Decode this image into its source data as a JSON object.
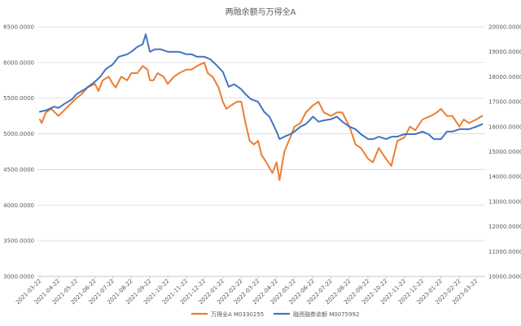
{
  "chart_data": {
    "type": "line",
    "title": "两融余额与万得全A",
    "colors": {
      "s1": "#ED7D31",
      "s2": "#4472C4",
      "grid": "#D9D9D9",
      "text": "#595959"
    },
    "x_categories": [
      "2021-03-22",
      "2021-04-22",
      "2021-05-22",
      "2021-06-22",
      "2021-07-22",
      "2021-08-22",
      "2021-09-22",
      "2021-10-22",
      "2021-11-22",
      "2021-12-22",
      "2022-01-22",
      "2022-02-22",
      "2022-03-22",
      "2022-04-22",
      "2022-05-22",
      "2022-06-22",
      "2022-07-22",
      "2022-08-22",
      "2022-09-22",
      "2022-10-22",
      "2022-11-22",
      "2022-12-22",
      "2023-01-22",
      "2023-02-22",
      "2023-03-22"
    ],
    "y_left": {
      "min": 3000,
      "max": 6500,
      "ticks": [
        "3000.0000",
        "3500.0000",
        "4000.0000",
        "4500.0000",
        "5000.0000",
        "5500.0000",
        "6000.0000",
        "6500.0000"
      ]
    },
    "y_right": {
      "min": 10000,
      "max": 20000,
      "ticks": [
        "10000.0000",
        "11000.0000",
        "12000.0000",
        "13000.0000",
        "14000.0000",
        "15000.0000",
        "16000.0000",
        "17000.0000",
        "18000.0000",
        "19000.0000",
        "20000.0000"
      ]
    },
    "grid": true,
    "legend_position": "bottom",
    "series": [
      {
        "name": "万得全A M0330255",
        "axis": "left",
        "x": [
          "2021-03-22",
          "2021-03-25",
          "2021-04-01",
          "2021-04-10",
          "2021-04-22",
          "2021-04-28",
          "2021-05-10",
          "2021-05-22",
          "2021-05-30",
          "2021-06-10",
          "2021-06-22",
          "2021-06-28",
          "2021-07-05",
          "2021-07-15",
          "2021-07-22",
          "2021-07-27",
          "2021-08-05",
          "2021-08-15",
          "2021-08-22",
          "2021-09-01",
          "2021-09-10",
          "2021-09-18",
          "2021-09-22",
          "2021-09-28",
          "2021-10-05",
          "2021-10-15",
          "2021-10-22",
          "2021-11-01",
          "2021-11-10",
          "2021-11-22",
          "2021-12-01",
          "2021-12-10",
          "2021-12-22",
          "2021-12-28",
          "2022-01-05",
          "2022-01-15",
          "2022-01-22",
          "2022-01-28",
          "2022-02-05",
          "2022-02-15",
          "2022-02-22",
          "2022-03-01",
          "2022-03-08",
          "2022-03-15",
          "2022-03-22",
          "2022-03-28",
          "2022-04-05",
          "2022-04-15",
          "2022-04-22",
          "2022-04-27",
          "2022-05-05",
          "2022-05-15",
          "2022-05-22",
          "2022-06-01",
          "2022-06-10",
          "2022-06-22",
          "2022-07-01",
          "2022-07-10",
          "2022-07-22",
          "2022-08-01",
          "2022-08-10",
          "2022-08-22",
          "2022-09-01",
          "2022-09-10",
          "2022-09-22",
          "2022-09-30",
          "2022-10-10",
          "2022-10-22",
          "2022-10-31",
          "2022-11-10",
          "2022-11-22",
          "2022-12-01",
          "2022-12-10",
          "2022-12-22",
          "2023-01-05",
          "2023-01-15",
          "2023-01-22",
          "2023-02-01",
          "2023-02-10",
          "2023-02-22",
          "2023-03-01",
          "2023-03-10",
          "2023-03-22",
          "2023-04-01"
        ],
        "y": [
          5200,
          5150,
          5300,
          5350,
          5250,
          5300,
          5400,
          5500,
          5550,
          5650,
          5700,
          5600,
          5750,
          5800,
          5700,
          5650,
          5800,
          5750,
          5850,
          5850,
          5950,
          5900,
          5750,
          5750,
          5850,
          5800,
          5700,
          5800,
          5850,
          5900,
          5900,
          5950,
          6000,
          5850,
          5800,
          5650,
          5450,
          5350,
          5400,
          5450,
          5450,
          5150,
          4900,
          4850,
          4900,
          4700,
          4600,
          4450,
          4600,
          4350,
          4750,
          4950,
          5100,
          5150,
          5300,
          5400,
          5450,
          5300,
          5250,
          5300,
          5300,
          5100,
          4850,
          4800,
          4650,
          4600,
          4800,
          4650,
          4550,
          4900,
          4950,
          5100,
          5050,
          5200,
          5250,
          5300,
          5350,
          5250,
          5250,
          5100,
          5200,
          5150,
          5200,
          5250
        ]
      },
      {
        "name": "融资融券余额 M0075992",
        "axis": "right",
        "x": [
          "2021-03-22",
          "2021-04-01",
          "2021-04-15",
          "2021-04-22",
          "2021-05-01",
          "2021-05-15",
          "2021-05-22",
          "2021-06-05",
          "2021-06-22",
          "2021-07-01",
          "2021-07-10",
          "2021-07-22",
          "2021-08-01",
          "2021-08-15",
          "2021-08-22",
          "2021-09-01",
          "2021-09-10",
          "2021-09-15",
          "2021-09-22",
          "2021-09-30",
          "2021-10-10",
          "2021-10-22",
          "2021-11-01",
          "2021-11-10",
          "2021-11-22",
          "2021-12-01",
          "2021-12-10",
          "2021-12-22",
          "2022-01-01",
          "2022-01-10",
          "2022-01-22",
          "2022-02-01",
          "2022-02-10",
          "2022-02-22",
          "2022-03-01",
          "2022-03-10",
          "2022-03-22",
          "2022-04-01",
          "2022-04-10",
          "2022-04-22",
          "2022-04-27",
          "2022-05-05",
          "2022-05-15",
          "2022-05-22",
          "2022-06-01",
          "2022-06-10",
          "2022-06-22",
          "2022-07-01",
          "2022-07-10",
          "2022-07-22",
          "2022-08-01",
          "2022-08-10",
          "2022-08-22",
          "2022-09-01",
          "2022-09-10",
          "2022-09-22",
          "2022-10-01",
          "2022-10-10",
          "2022-10-22",
          "2022-11-01",
          "2022-11-10",
          "2022-11-22",
          "2022-12-01",
          "2022-12-10",
          "2022-12-22",
          "2023-01-01",
          "2023-01-10",
          "2023-01-22",
          "2023-02-01",
          "2023-02-10",
          "2023-02-22",
          "2023-03-01",
          "2023-03-10",
          "2023-03-22",
          "2023-04-01"
        ],
        "y": [
          16600,
          16650,
          16800,
          16750,
          16900,
          17100,
          17300,
          17500,
          17800,
          18000,
          18300,
          18500,
          18800,
          18900,
          19000,
          19200,
          19300,
          19700,
          19000,
          19100,
          19100,
          19000,
          19000,
          19000,
          18900,
          18900,
          18800,
          18800,
          18700,
          18500,
          18200,
          17600,
          17700,
          17500,
          17300,
          17100,
          17000,
          16600,
          16400,
          15800,
          15500,
          15600,
          15700,
          15800,
          16000,
          16100,
          16400,
          16200,
          16250,
          16300,
          16400,
          16200,
          16000,
          15900,
          15700,
          15500,
          15500,
          15600,
          15500,
          15600,
          15600,
          15700,
          15700,
          15700,
          15800,
          15700,
          15500,
          15500,
          15800,
          15800,
          15900,
          15900,
          15900,
          16000,
          16100
        ]
      }
    ]
  }
}
